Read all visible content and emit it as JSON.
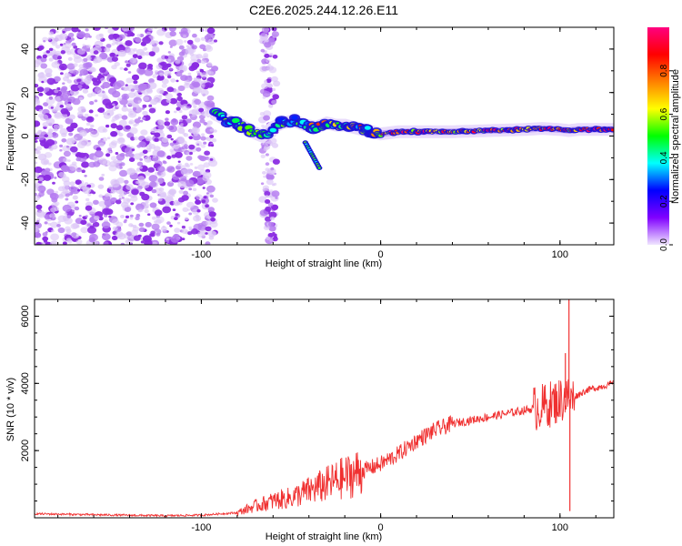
{
  "figure": {
    "title": "C2E6.2025.244.12.26.E11"
  },
  "chart_data": [
    {
      "type": "heatmap",
      "name": "spectrogram",
      "xlabel": "Height of straight line (km)",
      "ylabel": "Frequency (Hz)",
      "xlim": [
        -193,
        130
      ],
      "ylim": [
        -50,
        50
      ],
      "xticks": [
        -100,
        0,
        100
      ],
      "xtick_labels": [
        "-100",
        "0",
        "100"
      ],
      "yticks": [
        -40,
        -20,
        0,
        20,
        40
      ],
      "ytick_labels": [
        "-40",
        "-20",
        "0",
        "20",
        "40"
      ],
      "colorbar": {
        "label": "Normalized spectral amplitude",
        "range": [
          0,
          1
        ],
        "ticks": [
          0.0,
          0.2,
          0.4,
          0.6,
          0.8
        ],
        "tick_labels": [
          "0.0",
          "0.2",
          "0.4",
          "0.6",
          "0.8"
        ],
        "colors": [
          "#f0e6ff",
          "#8000ff",
          "#0000ff",
          "#00ffff",
          "#00ff00",
          "#ffff00",
          "#ff8000",
          "#ff0000",
          "#ff0080"
        ]
      },
      "noise_region": {
        "x_start": -193,
        "x_end": -92,
        "second_band": [
          -66,
          -58
        ]
      },
      "ridge": {
        "x": [
          -92,
          -85,
          -78,
          -72,
          -66,
          -60,
          -55,
          -48,
          -42,
          -36,
          -30,
          -25,
          -20,
          -15,
          -10,
          -5,
          0,
          10,
          20,
          40,
          60,
          80,
          90,
          100,
          105,
          110,
          120,
          130
        ],
        "freq": [
          10,
          7,
          5,
          2,
          0,
          4,
          6,
          7,
          5,
          4,
          6,
          5,
          5,
          4,
          3,
          2,
          1,
          2,
          2,
          2,
          2.5,
          3,
          3.5,
          3,
          2.5,
          3,
          3,
          3
        ]
      }
    },
    {
      "type": "line",
      "name": "snr",
      "xlabel": "Height of straight line (km)",
      "ylabel": "SNR (10 * v/v)",
      "xlim": [
        -193,
        130
      ],
      "ylim": [
        0,
        6500
      ],
      "xticks": [
        -100,
        0,
        100
      ],
      "xtick_labels": [
        "-100",
        "0",
        "100"
      ],
      "yticks": [
        2000,
        4000,
        6000
      ],
      "ytick_labels": [
        "2000",
        "4000",
        "6000"
      ],
      "line_color": "#f03030",
      "envelope": {
        "x": [
          -193,
          -160,
          -120,
          -100,
          -80,
          -70,
          -60,
          -50,
          -40,
          -30,
          -20,
          -10,
          0,
          10,
          20,
          30,
          40,
          60,
          80,
          90,
          100,
          104,
          106,
          108,
          115,
          130
        ],
        "y": [
          120,
          90,
          60,
          80,
          150,
          350,
          500,
          600,
          800,
          1000,
          1200,
          1400,
          1600,
          1900,
          2300,
          2600,
          2800,
          3000,
          3200,
          3300,
          3500,
          3600,
          3500,
          3600,
          3800,
          4000
        ]
      },
      "spikes": [
        {
          "x": 105,
          "y": 6500
        },
        {
          "x": 105.5,
          "y": 200
        },
        {
          "x": 103,
          "y": 4900
        }
      ]
    }
  ]
}
